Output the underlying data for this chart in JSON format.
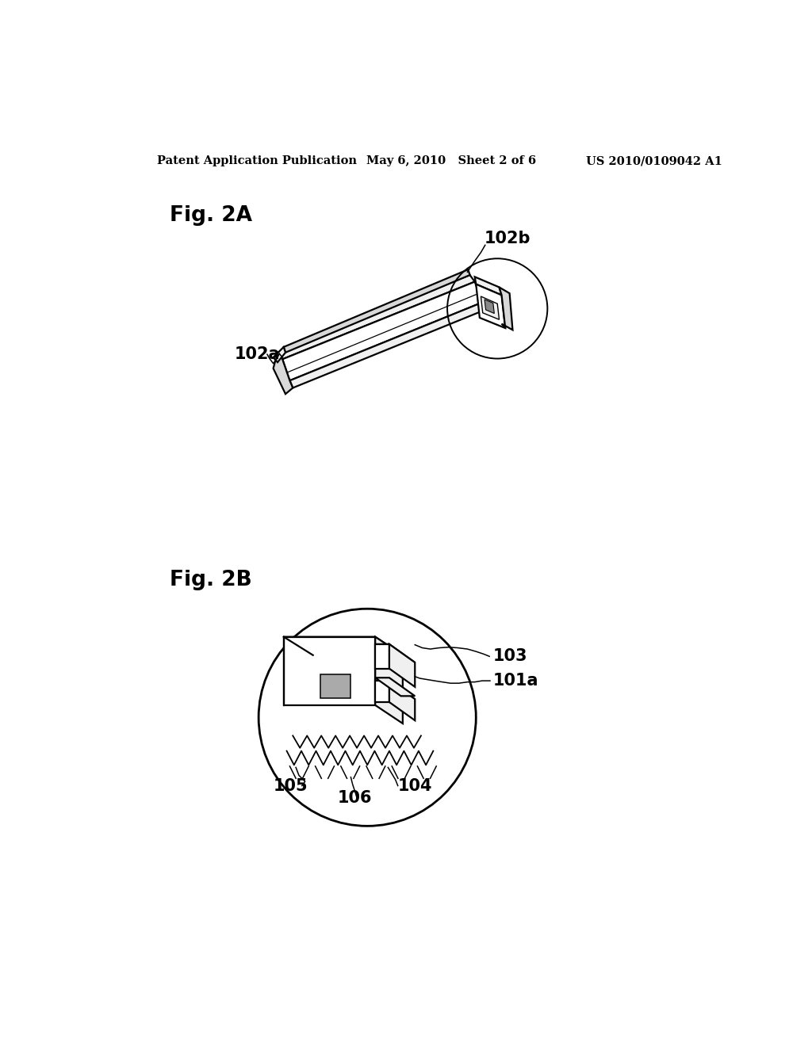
{
  "background_color": "#ffffff",
  "header_left": "Patent Application Publication",
  "header_center": "May 6, 2010   Sheet 2 of 6",
  "header_right": "US 2010/0109042 A1",
  "fig2a_label": "Fig. 2A",
  "fig2b_label": "Fig. 2B",
  "label_102b": "102b",
  "label_102a": "102a",
  "label_103": "103",
  "label_101a": "101a",
  "label_105": "105",
  "label_106": "106",
  "label_104": "104",
  "line_color": "#000000",
  "text_color": "#000000",
  "face_white": "#ffffff",
  "face_light": "#f0f0f0",
  "face_mid": "#d8d8d8"
}
